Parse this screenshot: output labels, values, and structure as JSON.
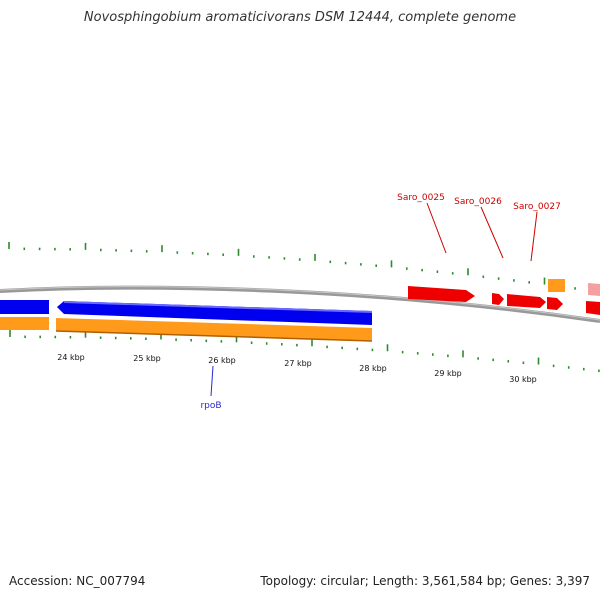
{
  "header": {
    "title": "Novosphingobium aromaticivorans DSM 12444, complete genome"
  },
  "footer": {
    "accession": "Accession: NC_007794",
    "summary": "Topology: circular; Length: 3,561,584 bp; Genes: 3,397"
  },
  "colors": {
    "backbone": "#8c8c8c",
    "tick": "#2e8b2e",
    "forward_cds": "#0000ee",
    "gene_track": "#ff9a1a",
    "reverse_cds": "#ee0000",
    "faded_cds": "#f5a0a0",
    "rpoB_label": "#2a2ad0",
    "saro_label": "#cc0000"
  },
  "map": {
    "scale_labels": [
      "24 kbp",
      "25 kbp",
      "26 kbp",
      "27 kbp",
      "28 kbp",
      "29 kbp",
      "30 kbp"
    ],
    "gene_labels": [
      {
        "text": "rpoB",
        "color": "#2a2ad0"
      },
      {
        "text": "Saro_0025",
        "color": "#cc0000"
      },
      {
        "text": "Saro_0026",
        "color": "#cc0000"
      },
      {
        "text": "Saro_0027",
        "color": "#cc0000"
      }
    ]
  }
}
